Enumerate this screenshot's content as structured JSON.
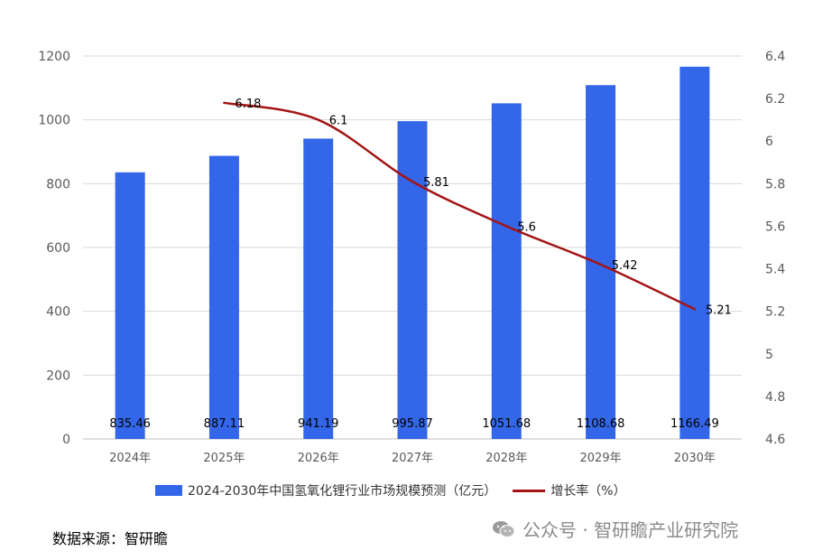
{
  "chart_data": {
    "type": "bar+line",
    "categories": [
      "2024年",
      "2025年",
      "2026年",
      "2027年",
      "2028年",
      "2029年",
      "2030年"
    ],
    "series": [
      {
        "name": "2024-2030年中国氢氧化锂行业市场规模预测（亿元）",
        "type": "bar",
        "axis": "left",
        "values": [
          835.46,
          887.11,
          941.19,
          995.87,
          1051.68,
          1108.68,
          1166.49
        ],
        "labels": [
          "835.46",
          "887.11",
          "941.19",
          "995.87",
          "1051.68",
          "1108.68",
          "1166.49"
        ]
      },
      {
        "name": "增长率（%）",
        "type": "line",
        "axis": "right",
        "values": [
          null,
          6.18,
          6.1,
          5.81,
          5.6,
          5.42,
          5.21
        ],
        "labels": [
          "",
          "6.18",
          "6.1",
          "5.81",
          "5.6",
          "5.42",
          "5.21"
        ]
      }
    ],
    "y_left": {
      "min": 0,
      "max": 1200,
      "ticks": [
        "0",
        "200",
        "400",
        "600",
        "800",
        "1000",
        "1200"
      ]
    },
    "y_right": {
      "min": 4.6,
      "max": 6.4,
      "ticks": [
        "4.6",
        "4.8",
        "5",
        "5.2",
        "5.4",
        "5.6",
        "5.8",
        "6",
        "6.2",
        "6.4"
      ]
    },
    "grid": true,
    "legend_position": "bottom",
    "colors": {
      "bar": "#3366e8",
      "line": "#a31515",
      "grid": "#d9d9d9"
    }
  },
  "footer": {
    "source": "数据来源：智研瞻",
    "watermark": "公众号 · 智研瞻产业研究院"
  }
}
